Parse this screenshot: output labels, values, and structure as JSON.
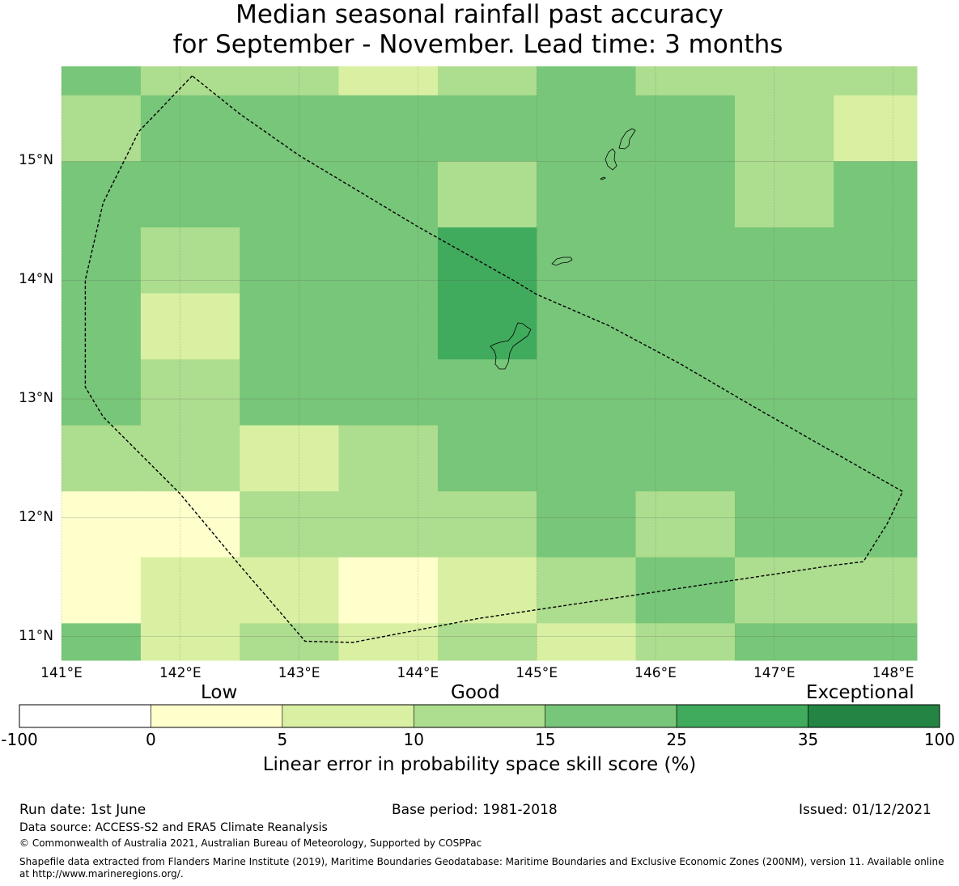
{
  "title": {
    "line1": "Median seasonal rainfall past accuracy",
    "line2": "for September - November. Lead time: 3 months"
  },
  "map": {
    "lon_range": [
      141.0,
      148.2
    ],
    "lat_range": [
      10.8,
      15.8
    ],
    "x_ticks": [
      "141°E",
      "142°E",
      "143°E",
      "144°E",
      "145°E",
      "146°E",
      "147°E",
      "148°E"
    ],
    "x_tick_values": [
      141,
      142,
      143,
      144,
      145,
      146,
      147,
      148
    ],
    "y_ticks": [
      "11°N",
      "12°N",
      "13°N",
      "14°N",
      "15°N"
    ],
    "y_tick_values": [
      11,
      12,
      13,
      14,
      15
    ],
    "grid_lon_edges": [
      141.0,
      141.667,
      142.5,
      143.333,
      144.167,
      145.0,
      145.833,
      146.667,
      147.5,
      148.2
    ],
    "grid_lat_edges": [
      10.8,
      11.111,
      11.667,
      12.222,
      12.778,
      13.333,
      13.889,
      14.444,
      15.0,
      15.556,
      15.8
    ],
    "skill_classes_by_row_north_to_south": [
      [
        4,
        3,
        3,
        2,
        3,
        4,
        3,
        3,
        3
      ],
      [
        3,
        4,
        4,
        4,
        4,
        4,
        4,
        3,
        2
      ],
      [
        4,
        4,
        4,
        4,
        3,
        4,
        4,
        3,
        4
      ],
      [
        4,
        3,
        4,
        4,
        5,
        4,
        4,
        4,
        4
      ],
      [
        4,
        2,
        4,
        4,
        5,
        4,
        4,
        4,
        4
      ],
      [
        4,
        3,
        4,
        4,
        4,
        4,
        4,
        4,
        4
      ],
      [
        3,
        3,
        2,
        3,
        4,
        4,
        4,
        4,
        4
      ],
      [
        1,
        1,
        3,
        3,
        3,
        4,
        3,
        4,
        4
      ],
      [
        1,
        2,
        2,
        1,
        2,
        3,
        4,
        3,
        3
      ],
      [
        4,
        2,
        3,
        2,
        3,
        2,
        3,
        4,
        4
      ]
    ],
    "eez_boundary_lonlat": [
      [
        142.1,
        15.72
      ],
      [
        141.65,
        15.25
      ],
      [
        141.35,
        14.65
      ],
      [
        141.2,
        14.0
      ],
      [
        141.2,
        13.1
      ],
      [
        141.35,
        12.85
      ],
      [
        142.0,
        12.2
      ],
      [
        142.5,
        11.6
      ],
      [
        143.05,
        10.96
      ],
      [
        143.45,
        10.95
      ],
      [
        144.5,
        11.15
      ],
      [
        145.5,
        11.3
      ],
      [
        146.5,
        11.45
      ],
      [
        147.5,
        11.6
      ],
      [
        147.75,
        11.63
      ],
      [
        147.95,
        11.95
      ],
      [
        148.08,
        12.22
      ],
      [
        147.5,
        12.55
      ],
      [
        146.8,
        12.95
      ],
      [
        146.2,
        13.3
      ],
      [
        145.6,
        13.62
      ],
      [
        145.0,
        13.88
      ],
      [
        144.8,
        14.0
      ],
      [
        144.0,
        14.45
      ],
      [
        143.5,
        14.75
      ],
      [
        143.0,
        15.05
      ],
      [
        142.5,
        15.4
      ],
      [
        142.1,
        15.72
      ]
    ]
  },
  "legend": {
    "category_low": "Low",
    "category_good": "Good",
    "category_exceptional": "Exceptional",
    "bins": [
      -100,
      0,
      5,
      10,
      15,
      25,
      35,
      100
    ],
    "tick_labels": [
      "-100",
      "0",
      "5",
      "10",
      "15",
      "25",
      "35",
      "100"
    ],
    "colors": [
      "#ffffff",
      "#ffffcc",
      "#d9f0a3",
      "#addd8e",
      "#78c679",
      "#41ab5d",
      "#238443"
    ],
    "title": "Linear error in probability space skill score (%)"
  },
  "footer": {
    "run_date": "Run date: 1st June",
    "base_period": "Base period: 1981-2018",
    "issued": "Issued: 01/12/2021",
    "data_source": "Data source: ACCESS-S2 and ERA5 Climate Reanalysis",
    "copyright": "© Commonwealth of Australia 2021, Australian Bureau of Meteorology, Supported by COSPPac",
    "shapefile_line1": "Shapefile data extracted from Flanders Marine Institute (2019), Maritime Boundaries Geodatabase: Maritime Boundaries and Exclusive Economic Zones (200NM), version 11. Available online",
    "shapefile_line2": "at http://www.marineregions.org/."
  }
}
